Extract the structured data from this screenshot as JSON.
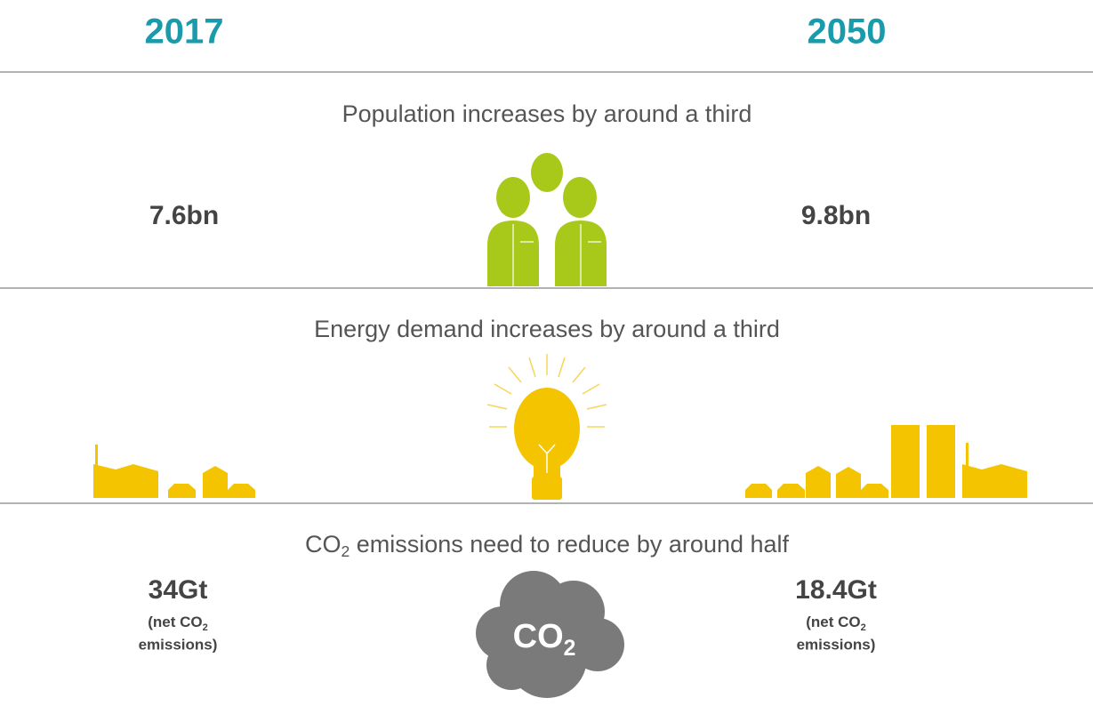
{
  "years": {
    "left": "2017",
    "right": "2050"
  },
  "sections": [
    {
      "heading": "Population increases by around a third",
      "left": "7.6bn",
      "right": "9.8bn"
    },
    {
      "heading": "Energy demand increases by around a third"
    },
    {
      "heading_parts": [
        "CO",
        "2",
        " emissions need to reduce by around half"
      ],
      "left": {
        "value": "34Gt",
        "note_parts": [
          "(net CO",
          "2",
          "emissions)"
        ]
      },
      "right": {
        "value": "18.4Gt",
        "note_parts": [
          "(net CO",
          "2",
          "emissions)"
        ]
      }
    }
  ],
  "icon_label": [
    "CO",
    "2"
  ]
}
